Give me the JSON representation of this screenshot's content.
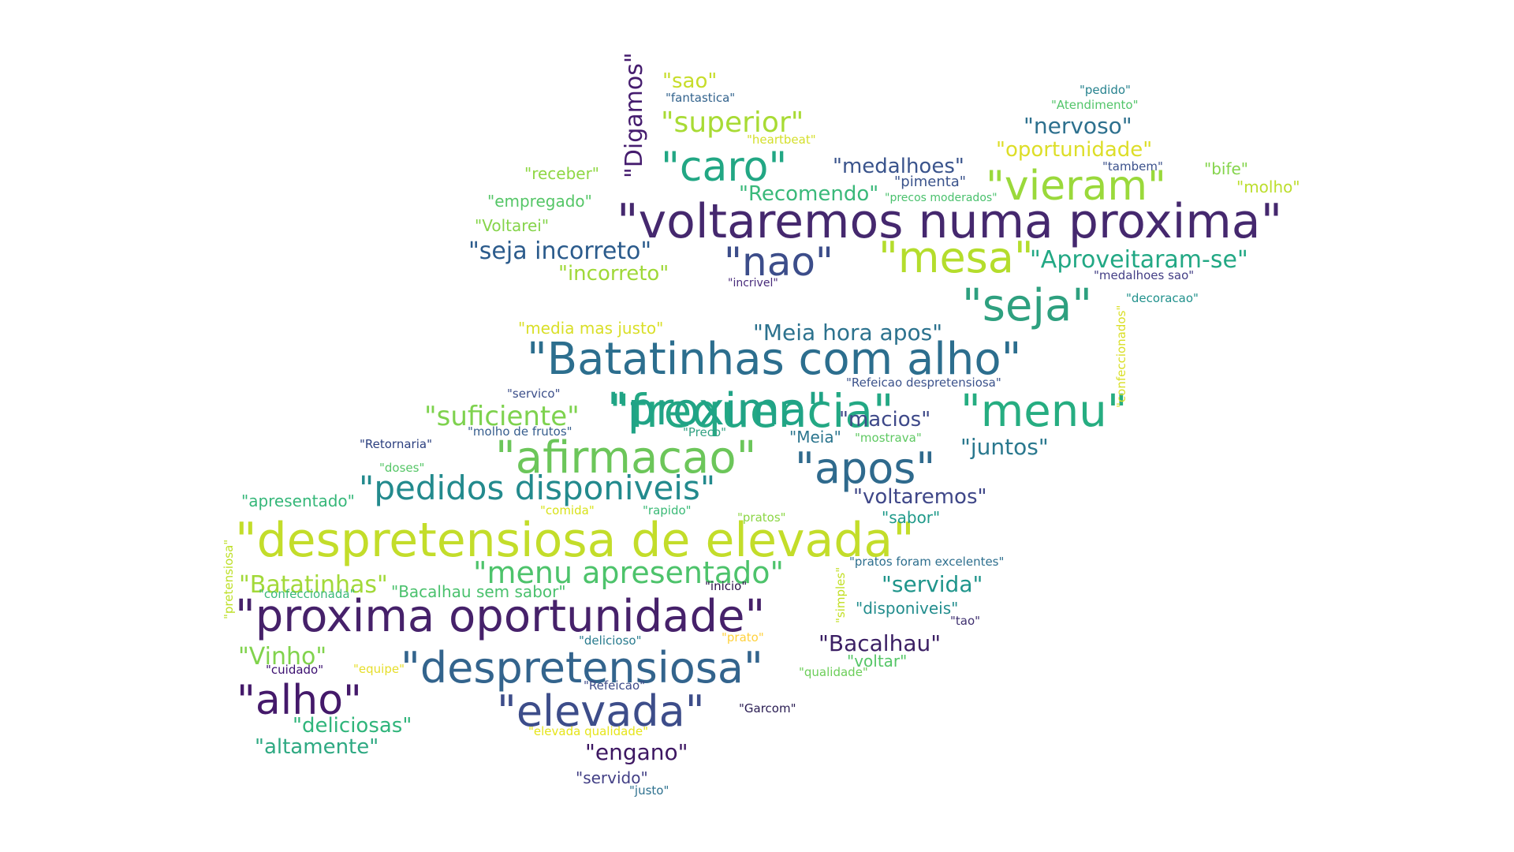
{
  "words": [
    {
      "text": "\"voltaremos numa proxima\"",
      "color": "#45286e"
    },
    {
      "text": "\"despretensiosa de elevada\"",
      "color": "#c3dd2a"
    },
    {
      "text": "\"proxima oportunidade\"",
      "color": "#46216a"
    },
    {
      "text": "\"Batatinhas com alho\"",
      "color": "#2c6e8e"
    },
    {
      "text": "\"despretensiosa\"",
      "color": "#33648d"
    },
    {
      "text": "\"frequencia\"",
      "color": "#23a884"
    },
    {
      "text": "\"seja\"",
      "color": "#2ea07f"
    },
    {
      "text": "\"proxima\"",
      "color": "#20a386"
    },
    {
      "text": "\"afirmacao\"",
      "color": "#6cc65a"
    },
    {
      "text": "\"apos\"",
      "color": "#2f6a8d"
    },
    {
      "text": "\"menu\"",
      "color": "#26ad81"
    },
    {
      "text": "\"mesa\"",
      "color": "#b4dd2c"
    },
    {
      "text": "\"vieram\"",
      "color": "#9ad93b"
    },
    {
      "text": "\"nao\"",
      "color": "#3c4d8a"
    },
    {
      "text": "\"caro\"",
      "color": "#22a784"
    },
    {
      "text": "\"alho\"",
      "color": "#44196a"
    },
    {
      "text": "\"elevada\"",
      "color": "#3d4d8a"
    },
    {
      "text": "\"pedidos disponiveis\"",
      "color": "#238a8d"
    },
    {
      "text": "\"menu apresentado\"",
      "color": "#4dc36b"
    },
    {
      "text": "\"superior\"",
      "color": "#a8db34"
    },
    {
      "text": "\"suficiente\"",
      "color": "#7ed24e"
    },
    {
      "text": "\"Aproveitaram-se\"",
      "color": "#22a884"
    },
    {
      "text": "\"seja incorreto\"",
      "color": "#2b5b8c"
    },
    {
      "text": "\"Meia hora apos\"",
      "color": "#2c728e"
    },
    {
      "text": "\"nervoso\"",
      "color": "#2d708e"
    },
    {
      "text": "\"oportunidade\"",
      "color": "#ddde28"
    },
    {
      "text": "\"medalhoes\"",
      "color": "#3a548c"
    },
    {
      "text": "\"Recomendo\"",
      "color": "#3ab97a"
    },
    {
      "text": "\"incorreto\"",
      "color": "#9fd838"
    },
    {
      "text": "\"Batatinhas\"",
      "color": "#a2d939"
    },
    {
      "text": "\"servida\"",
      "color": "#1f958b"
    },
    {
      "text": "\"Bacalhau\"",
      "color": "#3b1f64"
    },
    {
      "text": "\"Vinho\"",
      "color": "#81d34d"
    },
    {
      "text": "\"deliciosas\"",
      "color": "#30b57b"
    },
    {
      "text": "\"altamente\"",
      "color": "#2ea982"
    },
    {
      "text": "\"engano\"",
      "color": "#3d1762"
    },
    {
      "text": "\"juntos\"",
      "color": "#2a788e"
    },
    {
      "text": "\"macios\"",
      "color": "#3e4989"
    },
    {
      "text": "\"voltaremos\"",
      "color": "#3f4788"
    },
    {
      "text": "\"Digamos\"",
      "color": "#451c6e"
    },
    {
      "text": "\"sao\"",
      "color": "#c7dd2a"
    },
    {
      "text": "\"receber\"",
      "color": "#8fd744"
    },
    {
      "text": "\"empregado\"",
      "color": "#55c667"
    },
    {
      "text": "\"Voltarei\"",
      "color": "#85d44a"
    },
    {
      "text": "\"media mas justo\"",
      "color": "#d9df27"
    },
    {
      "text": "\"apresentado\"",
      "color": "#35b779"
    },
    {
      "text": "\"Bacalhau sem sabor\"",
      "color": "#4ac16d"
    },
    {
      "text": "\"bife\"",
      "color": "#84d44b"
    },
    {
      "text": "\"molho\"",
      "color": "#bcde2d"
    },
    {
      "text": "\"pimenta\"",
      "color": "#3a538b"
    },
    {
      "text": "\"disponiveis\"",
      "color": "#228d8d"
    },
    {
      "text": "\"sabor\"",
      "color": "#1f9a8a"
    },
    {
      "text": "\"voltar\"",
      "color": "#55c667"
    },
    {
      "text": "\"servido\"",
      "color": "#423f85"
    },
    {
      "text": "\"Meia\"",
      "color": "#2b758e"
    },
    {
      "text": "\"fantastica\"",
      "color": "#33638d"
    },
    {
      "text": "\"heartbeat\"",
      "color": "#d4df2a"
    },
    {
      "text": "\"pedido\"",
      "color": "#26828e"
    },
    {
      "text": "\"Atendimento\"",
      "color": "#52c569"
    },
    {
      "text": "\"tambem\"",
      "color": "#3b518b"
    },
    {
      "text": "\"precos moderados\"",
      "color": "#4ac16d"
    },
    {
      "text": "\"incrivel\"",
      "color": "#472a7a"
    },
    {
      "text": "\"medalhoes sao\"",
      "color": "#433e85"
    },
    {
      "text": "\"decoracao\"",
      "color": "#21918c"
    },
    {
      "text": "\"confeccionados\"",
      "color": "#d9df25"
    },
    {
      "text": "\"Refeicao despretensiosa\"",
      "color": "#3b528b"
    },
    {
      "text": "\"servico\"",
      "color": "#3c4f8a"
    },
    {
      "text": "\"molho de frutos\"",
      "color": "#365d8d"
    },
    {
      "text": "\"Preco\"",
      "color": "#33a283"
    },
    {
      "text": "\"mostrava\"",
      "color": "#5ec962"
    },
    {
      "text": "\"Retornaria\"",
      "color": "#2b3f7f"
    },
    {
      "text": "\"doses\"",
      "color": "#56c667"
    },
    {
      "text": "\"comida\"",
      "color": "#d8e219"
    },
    {
      "text": "\"rapido\"",
      "color": "#3aba76"
    },
    {
      "text": "\"pratos\"",
      "color": "#8cd645"
    },
    {
      "text": "\"pratos foram excelentes\"",
      "color": "#2e6f8e"
    },
    {
      "text": "\"pretensiosa\"",
      "color": "#bddf26"
    },
    {
      "text": "\"confeccionada\"",
      "color": "#3ab97a"
    },
    {
      "text": "\"simples\"",
      "color": "#c2df23"
    },
    {
      "text": "\"inicio\"",
      "color": "#2c114a"
    },
    {
      "text": "\"tao\"",
      "color": "#3e2f6f"
    },
    {
      "text": "\"delicioso\"",
      "color": "#297b8e"
    },
    {
      "text": "\"prato\"",
      "color": "#ffd13b"
    },
    {
      "text": "\"cuidado\"",
      "color": "#3b0f70"
    },
    {
      "text": "\"equipe\"",
      "color": "#e6de2a"
    },
    {
      "text": "\"qualidade\"",
      "color": "#6cce59"
    },
    {
      "text": "\"Refeicao\"",
      "color": "#3e4b89"
    },
    {
      "text": "\"Garcom\"",
      "color": "#281b51"
    },
    {
      "text": "\"elevada qualidade\"",
      "color": "#e6e51a"
    },
    {
      "text": "\"justo\"",
      "color": "#2d708e"
    }
  ]
}
